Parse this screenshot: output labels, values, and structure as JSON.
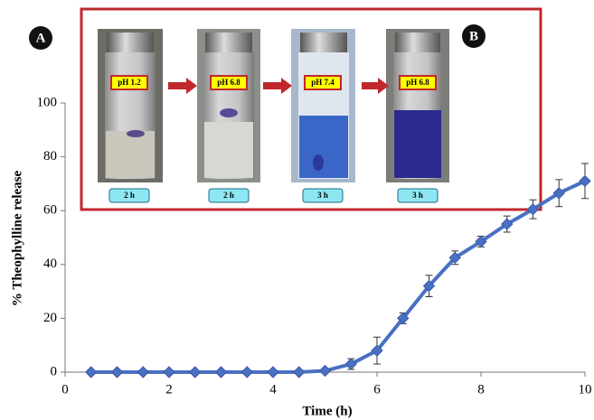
{
  "chart_data": {
    "type": "line",
    "x_label": "Time (h)",
    "y_label": "% Theophylline release",
    "x": [
      0.5,
      1,
      1.5,
      2,
      2.5,
      3,
      3.5,
      4,
      4.5,
      5,
      5.5,
      6,
      6.5,
      7,
      7.5,
      8,
      8.5,
      9,
      9.5,
      10
    ],
    "series": [
      {
        "color": "#4a70c2",
        "values": [
          0,
          0,
          0,
          0,
          0,
          0,
          0,
          0,
          0,
          0.5,
          3,
          8,
          20,
          32,
          42.5,
          48.5,
          55,
          60.5,
          66.5,
          71
        ],
        "errors": [
          0,
          0,
          0,
          0,
          0,
          0,
          0,
          0,
          0,
          0.5,
          2,
          5,
          2,
          4,
          2.5,
          2,
          3,
          3.5,
          5,
          6.5
        ]
      }
    ],
    "xlim": [
      0,
      10
    ],
    "xticks": [
      0,
      2,
      4,
      6,
      8,
      10
    ],
    "ylim": [
      0,
      100
    ],
    "yticks": [
      0,
      20,
      40,
      60,
      80,
      100
    ],
    "inset": {
      "panel_labels": [
        "A",
        "B"
      ],
      "vials": [
        {
          "ph": "pH 1.2",
          "time": "2 h"
        },
        {
          "ph": "pH 6.8",
          "time": "2 h"
        },
        {
          "ph": "pH 7.4",
          "time": "3 h"
        },
        {
          "ph": "pH 6.8",
          "time": "3 h"
        }
      ]
    }
  }
}
